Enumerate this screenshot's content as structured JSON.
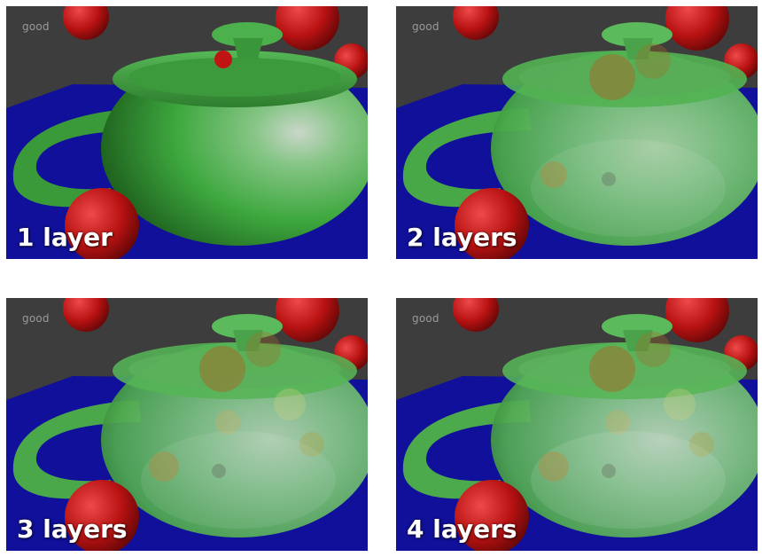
{
  "panels": [
    {
      "watermark": "good",
      "caption": "1 layer",
      "layers": 1
    },
    {
      "watermark": "good",
      "caption": "2 layers",
      "layers": 2
    },
    {
      "watermark": "good",
      "caption": "3 layers",
      "layers": 3
    },
    {
      "watermark": "good",
      "caption": "4 layers",
      "layers": 4
    }
  ],
  "colors": {
    "background": "#3d3d3d",
    "floor": "#10109a",
    "teapot": "#3fae3f",
    "spheres": "#c01414",
    "caption_text": "#ffffff"
  }
}
